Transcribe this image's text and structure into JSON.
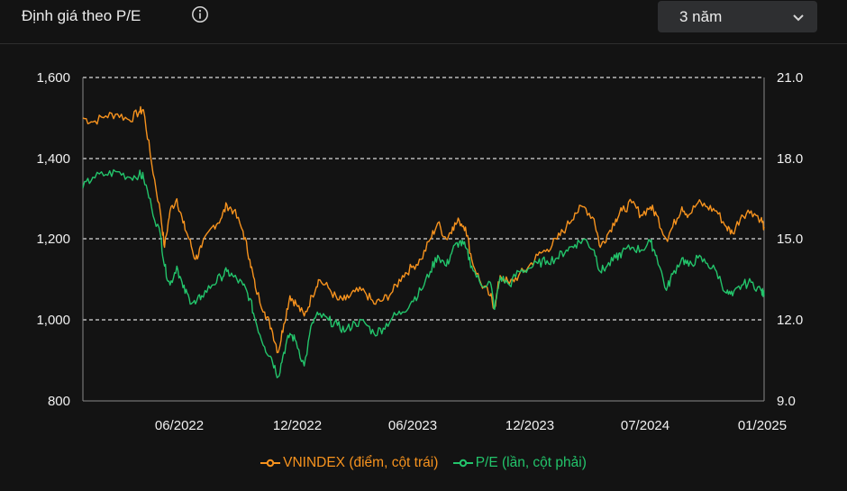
{
  "header": {
    "title": "Định giá theo P/E",
    "info_icon": "info-circle-icon",
    "period": {
      "selected": "3 năm",
      "icon": "chevron-down-icon"
    }
  },
  "colors": {
    "vnindex": "#f7931e",
    "pe": "#23c46b",
    "background": "#131313",
    "grid": "#dcdcdc",
    "axis": "#8a8a8a"
  },
  "chart_data": {
    "type": "line",
    "y_left": {
      "ticks": [
        "1,600",
        "1,400",
        "1,200",
        "1,000",
        "800"
      ],
      "range": [
        800,
        1600
      ]
    },
    "y_right": {
      "ticks": [
        "21.0",
        "18.0",
        "15.0",
        "12.0",
        "9.0"
      ],
      "range": [
        9.0,
        21.0
      ]
    },
    "x_ticks": [
      "06/2022",
      "12/2022",
      "06/2023",
      "12/2023",
      "07/2024",
      "01/2025"
    ],
    "x_range": [
      "2022-01",
      "2025-01"
    ],
    "grid": "horizontal dashed",
    "legend_position": "bottom",
    "series": [
      {
        "name": "VNINDEX (điểm, cột trái)",
        "axis": "left",
        "color": "#f7931e",
        "points": [
          [
            "2022-01-04",
            1500
          ],
          [
            "2022-01-20",
            1490
          ],
          [
            "2022-02-10",
            1505
          ],
          [
            "2022-03-01",
            1510
          ],
          [
            "2022-03-20",
            1495
          ],
          [
            "2022-04-05",
            1515
          ],
          [
            "2022-04-12",
            1520
          ],
          [
            "2022-04-25",
            1390
          ],
          [
            "2022-05-10",
            1260
          ],
          [
            "2022-05-16",
            1180
          ],
          [
            "2022-05-25",
            1270
          ],
          [
            "2022-06-05",
            1300
          ],
          [
            "2022-06-15",
            1240
          ],
          [
            "2022-06-25",
            1200
          ],
          [
            "2022-07-05",
            1150
          ],
          [
            "2022-07-15",
            1180
          ],
          [
            "2022-08-01",
            1230
          ],
          [
            "2022-08-15",
            1250
          ],
          [
            "2022-08-25",
            1285
          ],
          [
            "2022-09-05",
            1270
          ],
          [
            "2022-09-20",
            1220
          ],
          [
            "2022-10-01",
            1150
          ],
          [
            "2022-10-10",
            1080
          ],
          [
            "2022-10-25",
            1020
          ],
          [
            "2022-11-05",
            980
          ],
          [
            "2022-11-16",
            920
          ],
          [
            "2022-11-25",
            990
          ],
          [
            "2022-12-05",
            1060
          ],
          [
            "2022-12-15",
            1040
          ],
          [
            "2022-12-28",
            1010
          ],
          [
            "2023-01-10",
            1060
          ],
          [
            "2023-01-20",
            1100
          ],
          [
            "2023-02-05",
            1080
          ],
          [
            "2023-02-20",
            1050
          ],
          [
            "2023-03-05",
            1050
          ],
          [
            "2023-03-20",
            1070
          ],
          [
            "2023-04-05",
            1070
          ],
          [
            "2023-04-20",
            1040
          ],
          [
            "2023-05-05",
            1050
          ],
          [
            "2023-05-20",
            1070
          ],
          [
            "2023-06-05",
            1110
          ],
          [
            "2023-06-20",
            1130
          ],
          [
            "2023-07-05",
            1150
          ],
          [
            "2023-07-20",
            1200
          ],
          [
            "2023-08-01",
            1240
          ],
          [
            "2023-08-15",
            1200
          ],
          [
            "2023-08-25",
            1230
          ],
          [
            "2023-09-05",
            1245
          ],
          [
            "2023-09-15",
            1230
          ],
          [
            "2023-09-25",
            1150
          ],
          [
            "2023-10-10",
            1090
          ],
          [
            "2023-10-25",
            1060
          ],
          [
            "2023-11-01",
            1030
          ],
          [
            "2023-11-10",
            1110
          ],
          [
            "2023-11-25",
            1090
          ],
          [
            "2023-12-10",
            1110
          ],
          [
            "2023-12-25",
            1130
          ],
          [
            "2024-01-10",
            1160
          ],
          [
            "2024-01-25",
            1175
          ],
          [
            "2024-02-10",
            1200
          ],
          [
            "2024-02-25",
            1230
          ],
          [
            "2024-03-10",
            1265
          ],
          [
            "2024-03-25",
            1280
          ],
          [
            "2024-04-10",
            1250
          ],
          [
            "2024-04-20",
            1180
          ],
          [
            "2024-05-01",
            1210
          ],
          [
            "2024-05-15",
            1250
          ],
          [
            "2024-05-25",
            1270
          ],
          [
            "2024-06-10",
            1290
          ],
          [
            "2024-06-25",
            1260
          ],
          [
            "2024-07-10",
            1280
          ],
          [
            "2024-07-20",
            1260
          ],
          [
            "2024-08-05",
            1200
          ],
          [
            "2024-08-15",
            1230
          ],
          [
            "2024-08-30",
            1280
          ],
          [
            "2024-09-10",
            1260
          ],
          [
            "2024-09-25",
            1290
          ],
          [
            "2024-10-10",
            1280
          ],
          [
            "2024-10-25",
            1270
          ],
          [
            "2024-11-10",
            1230
          ],
          [
            "2024-11-20",
            1215
          ],
          [
            "2024-12-05",
            1260
          ],
          [
            "2024-12-20",
            1270
          ],
          [
            "2025-01-05",
            1250
          ],
          [
            "2025-01-10",
            1230
          ]
        ]
      },
      {
        "name": "P/E (lần, cột phải)",
        "axis": "right",
        "color": "#23c46b",
        "points": [
          [
            "2022-01-04",
            16.9
          ],
          [
            "2022-01-20",
            17.3
          ],
          [
            "2022-02-10",
            17.4
          ],
          [
            "2022-03-01",
            17.5
          ],
          [
            "2022-03-20",
            17.3
          ],
          [
            "2022-04-05",
            17.4
          ],
          [
            "2022-04-12",
            17.3
          ],
          [
            "2022-04-25",
            16.2
          ],
          [
            "2022-05-10",
            15.1
          ],
          [
            "2022-05-16",
            14.0
          ],
          [
            "2022-05-25",
            13.3
          ],
          [
            "2022-06-05",
            14.0
          ],
          [
            "2022-06-15",
            13.2
          ],
          [
            "2022-06-25",
            12.8
          ],
          [
            "2022-07-05",
            12.6
          ],
          [
            "2022-07-15",
            12.9
          ],
          [
            "2022-08-01",
            13.3
          ],
          [
            "2022-08-15",
            13.6
          ],
          [
            "2022-08-25",
            13.8
          ],
          [
            "2022-09-05",
            13.6
          ],
          [
            "2022-09-20",
            13.3
          ],
          [
            "2022-10-01",
            12.8
          ],
          [
            "2022-10-10",
            12.0
          ],
          [
            "2022-10-25",
            11.0
          ],
          [
            "2022-11-05",
            10.6
          ],
          [
            "2022-11-16",
            9.9
          ],
          [
            "2022-11-25",
            10.8
          ],
          [
            "2022-12-05",
            11.5
          ],
          [
            "2022-12-15",
            11.2
          ],
          [
            "2022-12-28",
            10.3
          ],
          [
            "2023-01-10",
            11.9
          ],
          [
            "2023-01-20",
            12.2
          ],
          [
            "2023-02-05",
            12.0
          ],
          [
            "2023-02-20",
            11.8
          ],
          [
            "2023-03-05",
            11.6
          ],
          [
            "2023-03-20",
            11.9
          ],
          [
            "2023-04-05",
            11.9
          ],
          [
            "2023-04-20",
            11.5
          ],
          [
            "2023-05-05",
            11.7
          ],
          [
            "2023-05-20",
            12.1
          ],
          [
            "2023-06-05",
            12.3
          ],
          [
            "2023-06-20",
            12.7
          ],
          [
            "2023-07-05",
            13.1
          ],
          [
            "2023-07-20",
            13.8
          ],
          [
            "2023-08-01",
            14.4
          ],
          [
            "2023-08-15",
            14.0
          ],
          [
            "2023-08-25",
            14.6
          ],
          [
            "2023-09-05",
            14.9
          ],
          [
            "2023-09-15",
            14.7
          ],
          [
            "2023-09-25",
            14.0
          ],
          [
            "2023-10-10",
            13.3
          ],
          [
            "2023-10-25",
            13.4
          ],
          [
            "2023-11-01",
            12.4
          ],
          [
            "2023-11-10",
            13.6
          ],
          [
            "2023-11-25",
            13.3
          ],
          [
            "2023-12-10",
            13.8
          ],
          [
            "2023-12-25",
            13.9
          ],
          [
            "2024-01-10",
            14.1
          ],
          [
            "2024-01-25",
            14.2
          ],
          [
            "2024-02-10",
            14.3
          ],
          [
            "2024-02-25",
            14.6
          ],
          [
            "2024-03-10",
            14.8
          ],
          [
            "2024-03-25",
            15.0
          ],
          [
            "2024-04-10",
            14.6
          ],
          [
            "2024-04-20",
            13.8
          ],
          [
            "2024-05-01",
            14.0
          ],
          [
            "2024-05-15",
            14.3
          ],
          [
            "2024-05-25",
            14.5
          ],
          [
            "2024-06-10",
            14.7
          ],
          [
            "2024-06-25",
            14.6
          ],
          [
            "2024-07-10",
            14.9
          ],
          [
            "2024-07-20",
            14.4
          ],
          [
            "2024-08-05",
            13.1
          ],
          [
            "2024-08-15",
            13.7
          ],
          [
            "2024-08-30",
            14.3
          ],
          [
            "2024-09-10",
            14.0
          ],
          [
            "2024-09-25",
            14.3
          ],
          [
            "2024-10-10",
            14.1
          ],
          [
            "2024-10-25",
            13.8
          ],
          [
            "2024-11-10",
            13.0
          ],
          [
            "2024-11-20",
            12.9
          ],
          [
            "2024-12-05",
            13.3
          ],
          [
            "2024-12-20",
            13.4
          ],
          [
            "2025-01-05",
            13.1
          ],
          [
            "2025-01-10",
            12.9
          ]
        ]
      }
    ]
  }
}
